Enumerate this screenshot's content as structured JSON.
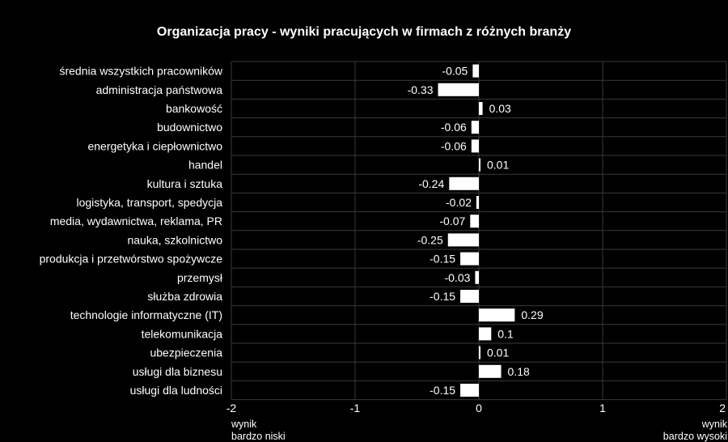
{
  "chart_data": {
    "type": "bar",
    "orientation": "horizontal",
    "title": "Organizacja pracy - wyniki pracujących w firmach z różnych branży",
    "categories": [
      "średnia wszystkich pracowników",
      "administracja państwowa",
      "bankowość",
      "budownictwo",
      "energetyka i ciepłownictwo",
      "handel",
      "kultura i sztuka",
      "logistyka, transport, spedycja",
      "media, wydawnictwa, reklama, PR",
      "nauka, szkolnictwo",
      "produkcja i przetwórstwo spożywcze",
      "przemysł",
      "służba zdrowia",
      "technologie informatyczne (IT)",
      "telekomunikacja",
      "ubezpieczenia",
      "usługi dla biznesu",
      "usługi dla ludności"
    ],
    "values": [
      -0.05,
      -0.33,
      0.03,
      -0.06,
      -0.06,
      0.01,
      -0.24,
      -0.02,
      -0.07,
      -0.25,
      -0.15,
      -0.03,
      -0.15,
      0.29,
      0.1,
      0.01,
      0.18,
      -0.15
    ],
    "xlim": [
      -2,
      2
    ],
    "xticks": [
      -2,
      -1,
      0,
      1,
      2
    ],
    "low_label": [
      "wynik",
      "bardzo niski"
    ],
    "high_label": [
      "wynik",
      "bardzo wysoki"
    ],
    "grid": true,
    "bar_color": "#ffffff",
    "grid_color": "#3a3a3a",
    "background": "#000000"
  }
}
